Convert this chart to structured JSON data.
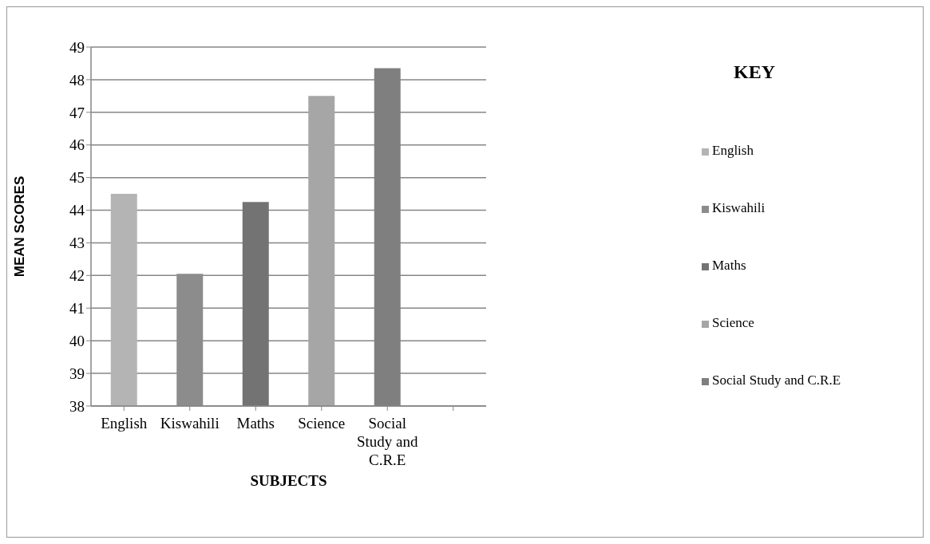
{
  "chart_data": {
    "type": "bar",
    "xlabel": "SUBJECTS",
    "ylabel": "MEAN SCORES",
    "legend_title": "KEY",
    "categories": [
      "English",
      "Kiswahili",
      "Maths",
      "Science",
      "Social Study and C.R.E",
      null
    ],
    "stacked": true,
    "series": [
      {
        "name": "English",
        "color": "#b4b4b4",
        "values": [
          44.5,
          null,
          null,
          null,
          null,
          null
        ]
      },
      {
        "name": "Kiswahili",
        "color": "#8c8c8c",
        "values": [
          null,
          42.05,
          null,
          null,
          null,
          null
        ]
      },
      {
        "name": "Maths",
        "color": "#737373",
        "values": [
          null,
          null,
          44.25,
          null,
          null,
          null
        ]
      },
      {
        "name": "Science",
        "color": "#a6a6a6",
        "values": [
          null,
          null,
          null,
          47.5,
          null,
          null
        ]
      },
      {
        "name": "Social Study and C.R.E",
        "color": "#7f7f7f",
        "values": [
          null,
          null,
          null,
          null,
          48.35,
          null
        ]
      }
    ],
    "ylim": [
      38,
      49
    ],
    "yticks": [
      38,
      39,
      40,
      41,
      42,
      43,
      44,
      45,
      46,
      47,
      48,
      49
    ],
    "grid": "y",
    "legend": "right"
  }
}
